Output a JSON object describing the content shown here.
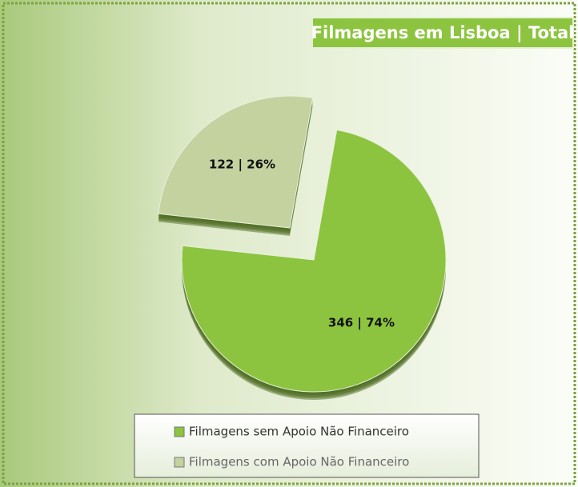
{
  "chart_data": {
    "type": "pie",
    "title": "Filmagens em Lisboa | Total",
    "categories": [
      "Filmagens sem Apoio Não Financeiro",
      "Filmagens com Apoio Não Financeiro"
    ],
    "values": [
      346,
      122
    ],
    "value_labels": [
      "346 | 74%",
      "122 | 26%"
    ],
    "colors": [
      "#8cc43f",
      "#c3d29f"
    ],
    "legend": "bottom"
  }
}
